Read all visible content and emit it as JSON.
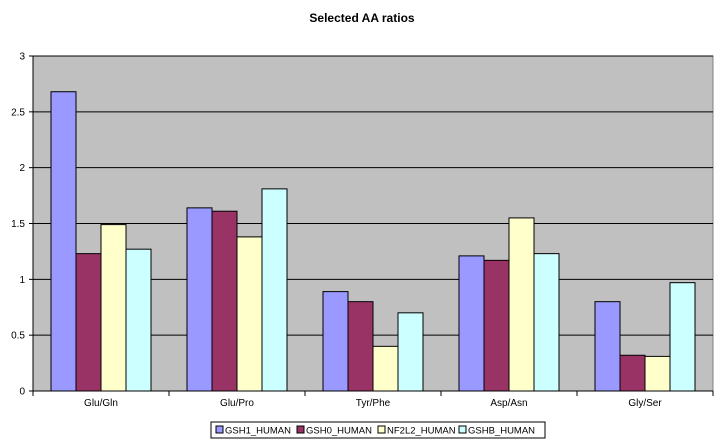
{
  "chart_data": {
    "type": "bar",
    "title": "Selected AA ratios",
    "xlabel": "",
    "ylabel": "",
    "categories": [
      "Glu/Gln",
      "Glu/Pro",
      "Tyr/Phe",
      "Asp/Asn",
      "Gly/Ser"
    ],
    "series": [
      {
        "name": "GSH1_HUMAN",
        "color": "#9999ff",
        "values": [
          2.68,
          1.64,
          0.89,
          1.21,
          0.8
        ]
      },
      {
        "name": "GSH0_HUMAN",
        "color": "#993366",
        "values": [
          1.23,
          1.61,
          0.8,
          1.17,
          0.32
        ]
      },
      {
        "name": "NF2L2_HUMAN",
        "color": "#ffffcc",
        "values": [
          1.49,
          1.38,
          0.4,
          1.55,
          0.31
        ]
      },
      {
        "name": "GSHB_HUMAN",
        "color": "#ccffff",
        "values": [
          1.27,
          1.81,
          0.7,
          1.23,
          0.97
        ]
      }
    ],
    "ylim": [
      0,
      3
    ],
    "yticks": [
      "0",
      "0.5",
      "1",
      "1.5",
      "2",
      "2.5",
      "3"
    ],
    "plot_background": "#c0c0c0",
    "grid": true,
    "legend_position": "bottom"
  }
}
